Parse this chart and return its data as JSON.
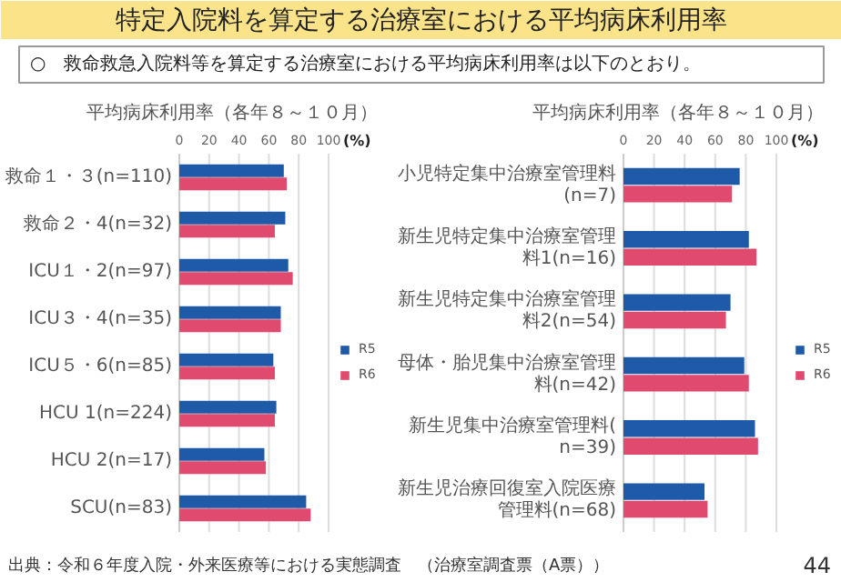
{
  "chart_data": [
    {
      "type": "bar",
      "orientation": "horizontal",
      "title": "平均病床利用率（各年８～１０月）",
      "xlabel": "(%)",
      "annotations": [
        "特定入院料を算定する治療室における平均病床利用率",
        "○　救命救急入院料等を算定する治療室における平均病床利用率は以下のとおり。"
      ],
      "categories": [
        "救命１・３(n=110)",
        "救命２・4(n=32)",
        "ICU１・2(n=97)",
        "ICU３・4(n=35)",
        "ICU５・6(n=85)",
        "HCU 1(n=224)",
        "HCU 2(n=17)",
        "SCU(n=83)"
      ],
      "series": [
        {
          "name": "R5",
          "color": "#1f5aa8",
          "values": [
            70,
            71,
            73,
            68,
            63,
            65,
            57,
            85
          ]
        },
        {
          "name": "R6",
          "color": "#df4a6e",
          "values": [
            72,
            64,
            76,
            68,
            64,
            64,
            58,
            88
          ]
        }
      ],
      "xlim": [
        0,
        100
      ],
      "xticks": [
        0,
        20,
        40,
        60,
        80,
        100
      ],
      "grid": "x",
      "legend": "right"
    },
    {
      "type": "bar",
      "orientation": "horizontal",
      "title": "平均病床利用率（各年８～１０月）",
      "xlabel": "(%)",
      "annotations": [
        "出典：令和６年度入院・外来医療等における実態調査　（治療室調査票（A票））",
        "44"
      ],
      "categories": [
        "小児特定集中治療室管理料(n=7)",
        "新生児特定集中治療室管理料1(n=16)",
        "新生児特定集中治療室管理料2(n=54)",
        "母体・胎児集中治療室管理料(n=42)",
        "新生児集中治療室管理料(n=39)",
        "新生児治療回復室入院医療管理料(n=68)"
      ],
      "series": [
        {
          "name": "R5",
          "color": "#1f5aa8",
          "values": [
            76,
            82,
            70,
            79,
            86,
            53
          ]
        },
        {
          "name": "R6",
          "color": "#df4a6e",
          "values": [
            71,
            87,
            67,
            82,
            88,
            55
          ]
        }
      ],
      "xlim": [
        0,
        100
      ],
      "xticks": [
        0,
        20,
        40,
        60,
        80,
        100
      ],
      "grid": "x",
      "legend": "right"
    }
  ]
}
